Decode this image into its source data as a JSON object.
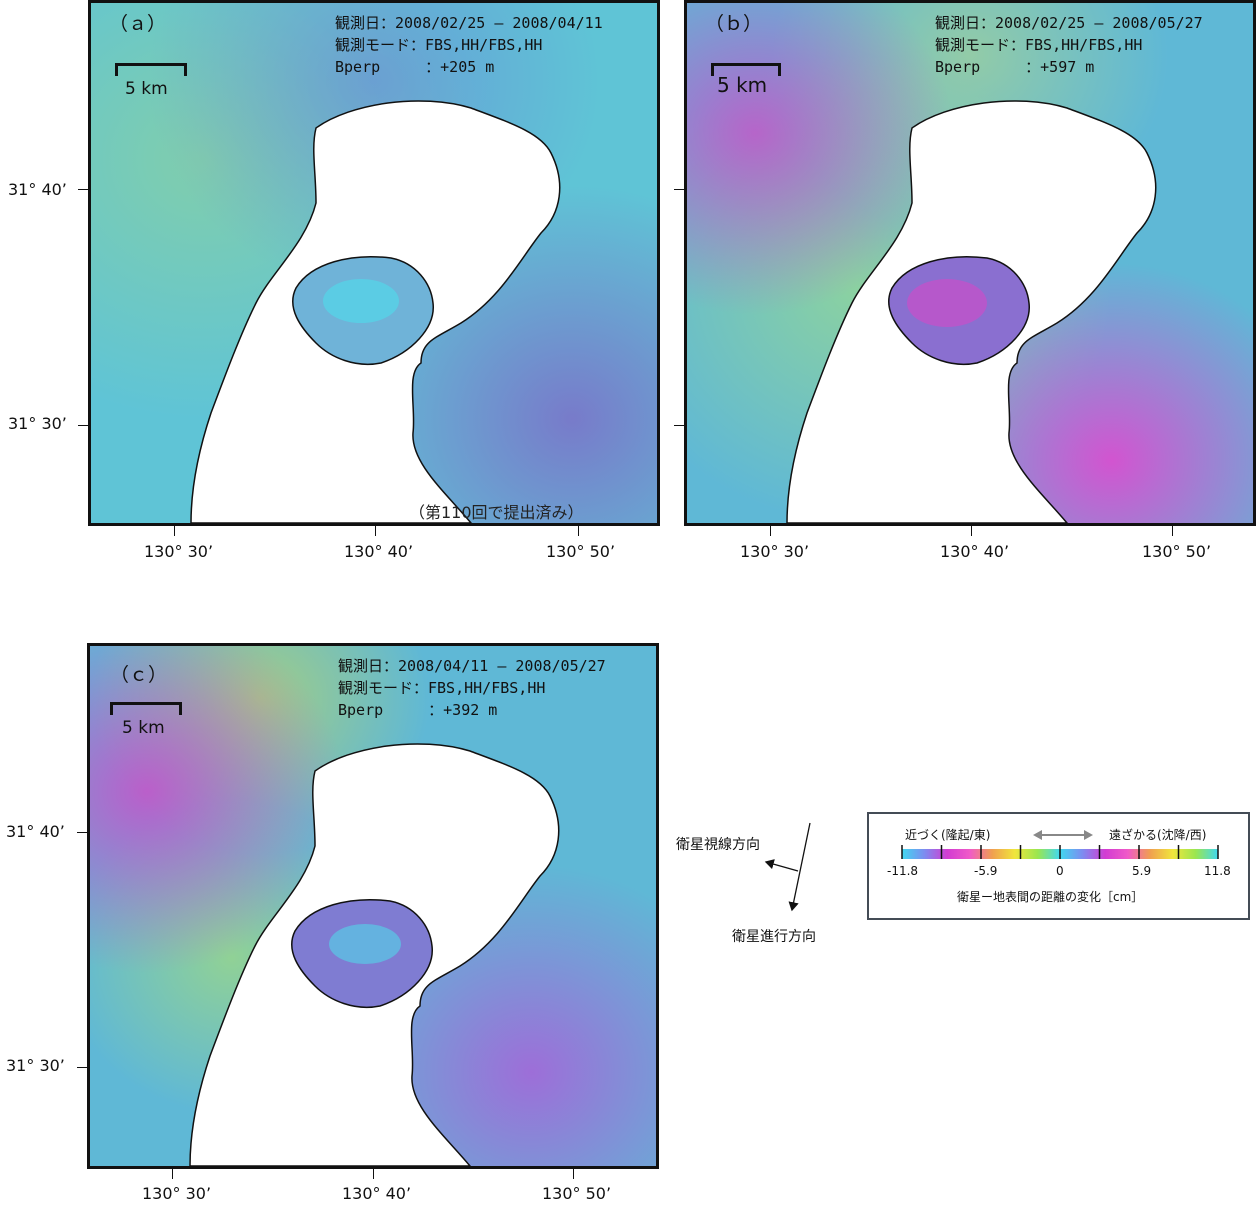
{
  "panels": [
    {
      "letter": "（ａ）",
      "obs_date": "観測日：2008/02/25 – 2008/04/11",
      "obs_mode": "観測モード：FBS,HH/FBS,HH",
      "bperp": "Bperp　　　：+205 m",
      "scale_label": "5 km",
      "note": "（第110回で提出済み）"
    },
    {
      "letter": "（ｂ）",
      "obs_date": "観測日：2008/02/25 – 2008/05/27",
      "obs_mode": "観測モード：FBS,HH/FBS,HH",
      "bperp": "Bperp　　　：+597 m",
      "scale_label": "5 km",
      "note": ""
    },
    {
      "letter": "（ｃ）",
      "obs_date": "観測日：2008/04/11 – 2008/05/27",
      "obs_mode": "観測モード：FBS,HH/FBS,HH",
      "bperp": "Bperp　　　：+392 m",
      "scale_label": "5 km",
      "note": ""
    }
  ],
  "axes": {
    "lat_labels": [
      "31° 40’",
      "31° 30’"
    ],
    "lon_labels": [
      "130° 30’",
      "130° 40’",
      "130° 50’"
    ]
  },
  "satellite": {
    "los_label": "衛星視線方向",
    "track_label": "衛星進行方向"
  },
  "legend": {
    "left_label": "近づく(隆起/東)",
    "right_label": "遠ざかる(沈降/西)",
    "ticks": [
      "-11.8",
      "-5.9",
      "0",
      "5.9",
      "11.8"
    ],
    "caption": "衛星ー地表間の距離の変化［cm］",
    "range": [
      -11.8,
      11.8
    ],
    "colors": [
      "#41d8f0",
      "#7d8cf0",
      "#d23cd2",
      "#f05ac8",
      "#f0a050",
      "#f0e63c",
      "#9be650",
      "#41d8f0",
      "#7d8cf0",
      "#d23cd2",
      "#f05ac8",
      "#f0a050",
      "#f0e63c",
      "#9be650",
      "#41d8f0"
    ]
  },
  "colors": {
    "base_blue": "#5fc4d6",
    "cyan": "#52d7ea",
    "purple": "#7c6ec8",
    "magenta": "#c94fc9",
    "green": "#8fd29a",
    "frame": "#111111",
    "water": "#ffffff"
  }
}
